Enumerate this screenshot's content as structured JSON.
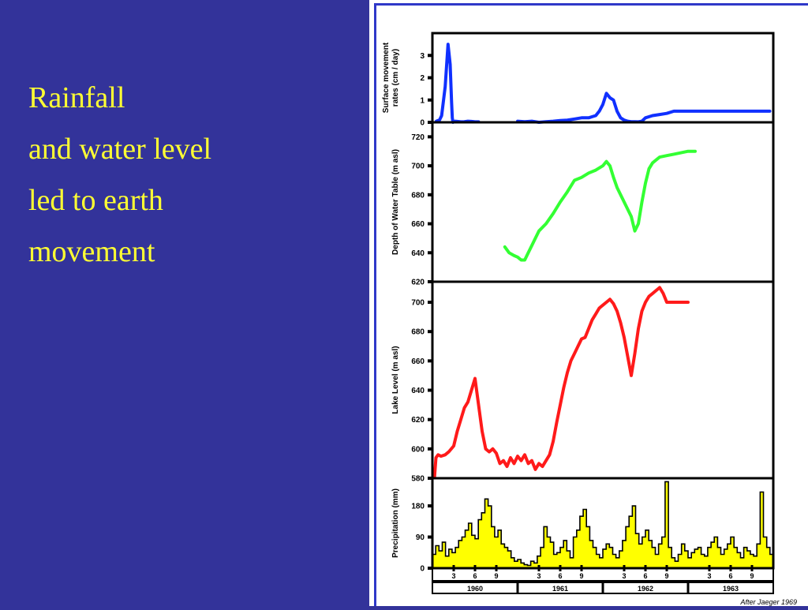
{
  "slide": {
    "lines": [
      "Rainfall",
      "and water level",
      "led to earth",
      "movement"
    ],
    "text_color": "#ffff33",
    "background": "#33339a"
  },
  "chart_data": [
    {
      "type": "line",
      "ylabel_lines": [
        "Surface movement",
        "rates (cm / day)"
      ],
      "yticks": [
        0,
        1,
        2,
        3
      ],
      "ylim": [
        0,
        4
      ],
      "color": "#1030ff",
      "x": [
        0.55,
        0.8,
        1.0,
        1.3,
        1.8,
        2.2,
        2.5,
        2.7,
        2.8,
        2.9,
        3.0,
        3.2,
        3.5,
        4.0,
        4.5,
        5.0,
        5.5,
        6.0,
        6.5,
        7.0,
        7.5,
        8.0,
        8.5,
        9.0,
        10.0,
        10.5,
        11.0,
        11.5,
        12.0,
        13.0,
        14.0,
        15.0,
        16.0,
        17.0,
        18.0,
        19.0,
        20.0,
        21.0,
        22.0,
        22.5,
        23.0,
        23.5,
        24.0,
        24.5,
        25.0,
        25.5,
        26.0,
        26.5,
        27.0,
        27.5,
        28.0,
        28.5,
        29.0,
        29.5,
        30.0,
        31.0,
        32.0,
        33.0,
        34.0,
        35.0,
        36.0,
        37.0,
        37.3,
        37.5,
        37.7,
        38.0,
        38.3,
        38.7,
        39.0,
        39.5,
        40.0,
        40.5,
        41.0,
        42.0,
        43.0,
        43.5,
        44.0,
        44.5,
        45.0,
        46.0,
        46.5,
        47.0,
        47.5
      ],
      "values": [
        0.05,
        0.08,
        0.1,
        0.3,
        1.6,
        3.5,
        2.6,
        0.9,
        0.2,
        0.0,
        0.02,
        0.05,
        0.04,
        0.02,
        0.03,
        0.05,
        0.04,
        0.02,
        0.02,
        null,
        null,
        null,
        null,
        null,
        null,
        null,
        null,
        null,
        0.05,
        0.03,
        0.05,
        0.0,
        0.03,
        0.05,
        0.08,
        0.1,
        0.15,
        0.2,
        0.2,
        0.25,
        0.3,
        0.5,
        0.8,
        1.3,
        1.1,
        1.0,
        0.5,
        0.2,
        0.1,
        0.05,
        0.03,
        0.03,
        0.02,
        0.05,
        0.2,
        0.3,
        0.35,
        0.4,
        0.5,
        0.5,
        0.5,
        0.5,
        0.5,
        0.5,
        0.5,
        0.5,
        0.5,
        0.5,
        0.5,
        0.5,
        0.5,
        0.5,
        0.5,
        0.5,
        0.5,
        0.5,
        0.5,
        0.5,
        0.5,
        0.5,
        0.5,
        0.5,
        0.5
      ]
    },
    {
      "type": "line",
      "ylabel_lines": [
        "Depth of Water Table (m asl)"
      ],
      "yticks": [
        620,
        640,
        660,
        680,
        700,
        720
      ],
      "ylim": [
        620,
        730
      ],
      "color": "#33ff33",
      "x": [
        10.2,
        10.8,
        11.5,
        12.0,
        12.5,
        13.0,
        13.5,
        14.0,
        14.5,
        15.0,
        16.0,
        17.0,
        18.0,
        19.0,
        20.0,
        21.0,
        22.0,
        23.0,
        24.0,
        24.5,
        25.0,
        25.5,
        26.0,
        27.0,
        28.0,
        28.5,
        29.0,
        29.5,
        30.0,
        30.5,
        31.0,
        31.5,
        32.0,
        33.0,
        34.0,
        35.0,
        36.0,
        37.0
      ],
      "values": [
        644,
        640,
        638,
        637,
        635,
        635,
        640,
        645,
        650,
        655,
        660,
        667,
        675,
        682,
        690,
        692,
        695,
        697,
        700,
        703,
        700,
        692,
        685,
        675,
        665,
        655,
        660,
        675,
        688,
        698,
        702,
        704,
        706,
        707,
        708,
        709,
        710,
        710
      ]
    },
    {
      "type": "line",
      "ylabel_lines": [
        "Lake Level (m asl)"
      ],
      "yticks": [
        580,
        600,
        620,
        640,
        660,
        680,
        700
      ],
      "ylim": [
        580,
        714
      ],
      "color": "#ff1a1a",
      "x": [
        0.3,
        0.5,
        0.8,
        1.2,
        1.8,
        2.3,
        3.0,
        3.5,
        4.0,
        4.5,
        5.0,
        5.5,
        6.0,
        6.5,
        7.0,
        7.5,
        8.0,
        8.5,
        9.0,
        9.5,
        10.0,
        10.5,
        11.0,
        11.5,
        12.0,
        12.5,
        13.0,
        13.5,
        14.0,
        14.5,
        15.0,
        15.5,
        16.0,
        16.5,
        17.0,
        17.5,
        18.0,
        18.5,
        19.0,
        19.5,
        20.0,
        20.5,
        21.0,
        21.5,
        22.0,
        22.5,
        23.0,
        23.5,
        24.0,
        24.5,
        25.0,
        25.5,
        26.0,
        26.5,
        27.0,
        27.5,
        28.0,
        28.5,
        29.0,
        29.5,
        30.0,
        30.5,
        31.0,
        31.5,
        32.0,
        32.5,
        33.0,
        33.5,
        34.0,
        34.5,
        35.0,
        35.5,
        36.0
      ],
      "values": [
        581,
        594,
        596,
        595,
        596,
        598,
        602,
        612,
        620,
        628,
        632,
        640,
        648,
        630,
        612,
        600,
        598,
        600,
        597,
        590,
        592,
        588,
        594,
        590,
        595,
        592,
        596,
        590,
        592,
        586,
        590,
        588,
        592,
        596,
        605,
        618,
        630,
        642,
        652,
        660,
        665,
        670,
        675,
        676,
        682,
        688,
        692,
        696,
        698,
        700,
        702,
        699,
        694,
        686,
        676,
        663,
        650,
        665,
        682,
        694,
        700,
        704,
        706,
        708,
        710,
        706,
        700,
        700,
        700,
        700,
        700,
        700,
        700
      ]
    },
    {
      "type": "bar",
      "ylabel_lines": [
        "Precipitation (mm)"
      ],
      "yticks": [
        0,
        90,
        180
      ],
      "ylim": [
        0,
        260
      ],
      "color": "#ffff00",
      "values": [
        40,
        65,
        50,
        75,
        35,
        55,
        45,
        60,
        80,
        90,
        110,
        130,
        95,
        85,
        140,
        160,
        200,
        180,
        120,
        90,
        110,
        70,
        60,
        50,
        30,
        20,
        25,
        15,
        10,
        8,
        20,
        15,
        35,
        60,
        120,
        90,
        75,
        40,
        45,
        60,
        80,
        50,
        30,
        90,
        110,
        150,
        170,
        120,
        80,
        60,
        40,
        30,
        55,
        70,
        60,
        40,
        30,
        50,
        80,
        120,
        150,
        180,
        100,
        70,
        90,
        110,
        80,
        60,
        40,
        70,
        90,
        250,
        60,
        30,
        20,
        40,
        70,
        50,
        30,
        45,
        55,
        60,
        40,
        35,
        60,
        75,
        90,
        60,
        40,
        55,
        70,
        90,
        60,
        45,
        30,
        60,
        50,
        40,
        35,
        70,
        220,
        90,
        60,
        40
      ]
    }
  ],
  "x_axis": {
    "months_per_year": [
      "3",
      "6",
      "9"
    ],
    "years": [
      "1960",
      "1961",
      "1962",
      "1963"
    ]
  },
  "credit": "After Jaeger 1969"
}
